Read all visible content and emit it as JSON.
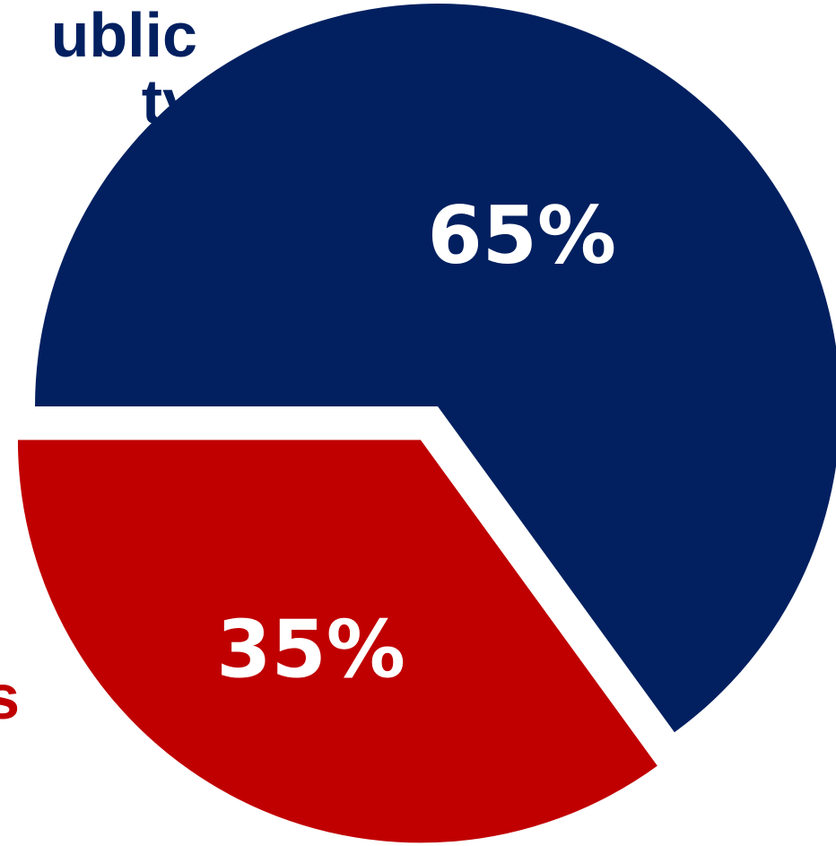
{
  "chart_data": {
    "type": "pie",
    "slices": [
      {
        "label": "...ublic\n...ty",
        "value": 65,
        "data_label": "65%",
        "color": "#022060"
      },
      {
        "label": "...s",
        "value": 35,
        "data_label": "35%",
        "color": "#c00000"
      }
    ],
    "exploded_slice": "35%",
    "visible_partial_labels": {
      "blue": [
        "ublic",
        "ty"
      ],
      "red": [
        "s"
      ]
    }
  }
}
